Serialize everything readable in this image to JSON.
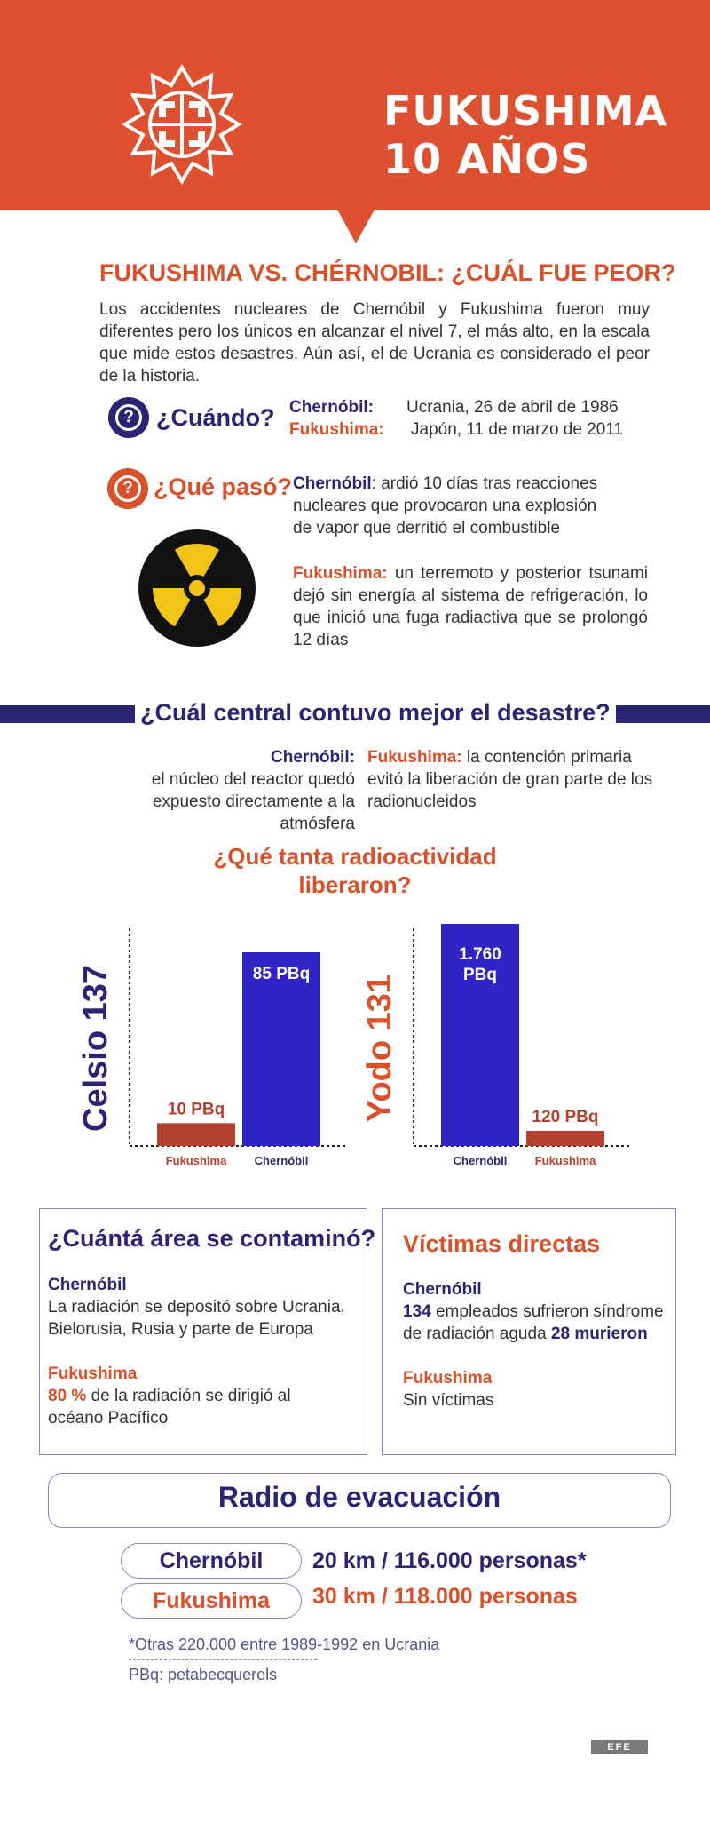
{
  "header": {
    "title_line1": "FUKUSHIMA",
    "title_line2": "10 AÑOS",
    "background_color": "#dd5131"
  },
  "section1": {
    "title": "FUKUSHIMA VS. CHÉRNOBIL: ¿CUÁL FUE PEOR?",
    "intro": "Los accidentes nucleares de Chernóbil y Fukushima fueron muy diferentes pero los únicos en alcanzar el nivel 7, el más alto, en la escala que mide estos desastres. Aún así, el de Ucrania es considerado el peor de la historia."
  },
  "when": {
    "label": "¿Cuándo?",
    "chernobyl_label": "Chernóbil:",
    "chernobyl_value": "Ucrania, 26 de abril de 1986",
    "fukushima_label": "Fukushima:",
    "fukushima_value": "Japón, 11 de marzo de 2011"
  },
  "what": {
    "label": "¿Qué pasó?",
    "chernobyl_label": "Chernóbil",
    "chernobyl_text": ": ardió 10 días tras reacciones nucleares que provocaron una explosión de vapor que derritió el combustible",
    "fukushima_label": "Fukushima:",
    "fukushima_text": " un terremoto y posterior tsunami dejó sin energía al sistema de refrigeración, lo que inició una fuga radiactiva que se prolongó 12 días"
  },
  "containment": {
    "title": "¿Cuál central contuvo mejor el desastre?",
    "chernobyl_label": "Chernóbil:",
    "chernobyl_text": "el núcleo del reactor quedó expuesto directamente a la atmósfera",
    "fukushima_label": "Fukushima:",
    "fukushima_text": " la contención primaria evitó la liberación de gran parte de los radionucleidos"
  },
  "radioactivity_title_line1": "¿Qué tanta radioactividad",
  "radioactivity_title_line2": "liberaron?",
  "chart_data": [
    {
      "type": "bar",
      "title": "Celsio 137",
      "categories": [
        "Fukushima",
        "Chernóbil"
      ],
      "values": [
        10,
        85
      ],
      "value_labels": [
        "10 PBq",
        "85 PBq"
      ],
      "colors": [
        "#b4412f",
        "#3124c6"
      ],
      "label_position": [
        "outside",
        "inside"
      ],
      "unit": "PBq"
    },
    {
      "type": "bar",
      "title": "Yodo 131",
      "categories": [
        "Chernóbil",
        "Fukushima"
      ],
      "values": [
        1760,
        120
      ],
      "value_labels": [
        "1.760 PBq",
        "120 PBq"
      ],
      "colors": [
        "#3124c6",
        "#b4412f"
      ],
      "label_position": [
        "inside",
        "outside"
      ],
      "unit": "PBq"
    }
  ],
  "area": {
    "title": "¿Cuántá área se contaminó?",
    "chernobyl_label": "Chernóbil",
    "chernobyl_text": "La radiación se depositó sobre Ucrania, Bielorusia, Rusia y parte de Europa",
    "fukushima_label": "Fukushima",
    "fukushima_pct": "80 %",
    "fukushima_text": " de la radiación se dirigió al océano Pacífico"
  },
  "victims": {
    "title": "Víctimas directas",
    "chernobyl_label": "Chernóbil",
    "chernobyl_count": "134",
    "chernobyl_text": " empleados sufrieron síndrome de radiación aguda ",
    "chernobyl_dead": "28 murieron",
    "fukushima_label": "Fukushima",
    "fukushima_text": "Sin víctimas"
  },
  "evacuation": {
    "title": "Radio de evacuación",
    "chernobyl_label": "Chernóbil",
    "chernobyl_value": "20 km / 116.000 personas*",
    "fukushima_label": "Fukushima",
    "fukushima_value": "30 km / 118.000 personas"
  },
  "footnotes": {
    "note": "*Otras 220.000 entre 1989-1992 en Ucrania",
    "abbr": "PBq: petabecquerels"
  },
  "credit": "EFE"
}
